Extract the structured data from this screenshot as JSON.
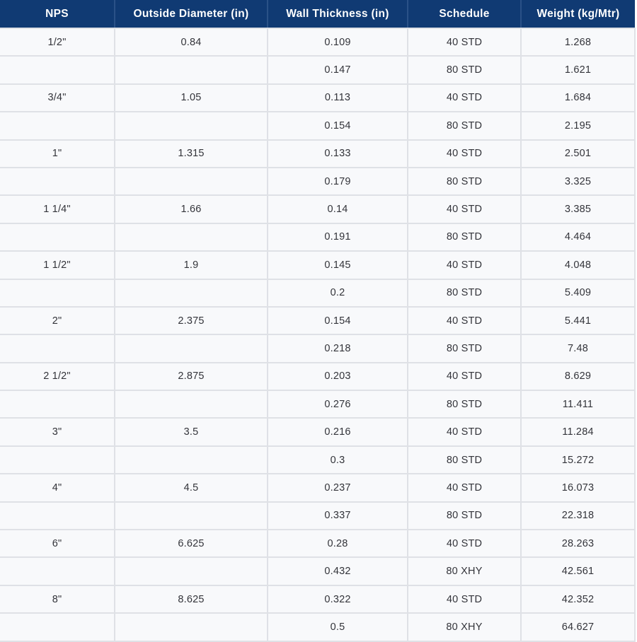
{
  "colors": {
    "header_bg": "#103a73",
    "header_text": "#ffffff",
    "row_bg": "#f8f9fb",
    "border": "#dfe1e6",
    "cell_text": "#33343a"
  },
  "chart_data": {
    "type": "table",
    "title": "",
    "columns": [
      "NPS",
      "Outside Diameter (in)",
      "Wall Thickness (in)",
      "Schedule",
      "Weight (kg/Mtr)"
    ],
    "rows": [
      [
        "1/2\"",
        "0.84",
        "0.109",
        "40 STD",
        "1.268"
      ],
      [
        "",
        "",
        "0.147",
        "80 STD",
        "1.621"
      ],
      [
        "3/4\"",
        "1.05",
        "0.113",
        "40 STD",
        "1.684"
      ],
      [
        "",
        "",
        "0.154",
        "80 STD",
        "2.195"
      ],
      [
        "1\"",
        "1.315",
        "0.133",
        "40 STD",
        "2.501"
      ],
      [
        "",
        "",
        "0.179",
        "80 STD",
        "3.325"
      ],
      [
        "1 1/4\"",
        "1.66",
        "0.14",
        "40 STD",
        "3.385"
      ],
      [
        "",
        "",
        "0.191",
        "80 STD",
        "4.464"
      ],
      [
        "1 1/2\"",
        "1.9",
        "0.145",
        "40 STD",
        "4.048"
      ],
      [
        "",
        "",
        "0.2",
        "80 STD",
        "5.409"
      ],
      [
        "2\"",
        "2.375",
        "0.154",
        "40 STD",
        "5.441"
      ],
      [
        "",
        "",
        "0.218",
        "80 STD",
        "7.48"
      ],
      [
        "2 1/2\"",
        "2.875",
        "0.203",
        "40 STD",
        "8.629"
      ],
      [
        "",
        "",
        "0.276",
        "80 STD",
        "11.411"
      ],
      [
        "3\"",
        "3.5",
        "0.216",
        "40 STD",
        "11.284"
      ],
      [
        "",
        "",
        "0.3",
        "80 STD",
        "15.272"
      ],
      [
        "4\"",
        "4.5",
        "0.237",
        "40 STD",
        "16.073"
      ],
      [
        "",
        "",
        "0.337",
        "80 STD",
        "22.318"
      ],
      [
        "6\"",
        "6.625",
        "0.28",
        "40 STD",
        "28.263"
      ],
      [
        "",
        "",
        "0.432",
        "80 XHY",
        "42.561"
      ],
      [
        "8\"",
        "8.625",
        "0.322",
        "40 STD",
        "42.352"
      ],
      [
        "",
        "",
        "0.5",
        "80 XHY",
        "64.627"
      ]
    ]
  }
}
